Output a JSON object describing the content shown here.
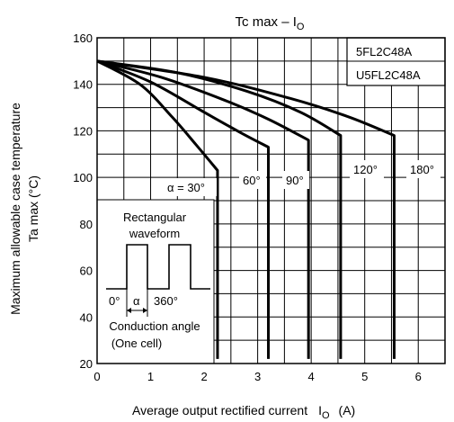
{
  "chart_data": {
    "type": "line",
    "title": "Tc max – I",
    "title_subscript": "O",
    "xlabel": "Average output rectified current",
    "xlabel_symbol": "I",
    "xlabel_symbol_subscript": "O",
    "xlabel_unit": "(A)",
    "ylabel_line1": "Maximum allowable case temperature",
    "ylabel_line2": "Ta max    (°C)",
    "xlim": [
      0,
      6.5
    ],
    "ylim": [
      20,
      160
    ],
    "x_ticks": [
      0,
      1,
      2,
      3,
      4,
      5,
      6
    ],
    "y_ticks": [
      20,
      40,
      60,
      80,
      100,
      120,
      140,
      160
    ],
    "x_tick_labels": [
      "0",
      "1",
      "2",
      "3",
      "4",
      "5",
      "6"
    ],
    "y_tick_labels": [
      "20",
      "40",
      "60",
      "80",
      "100",
      "120",
      "140",
      "160"
    ],
    "grid": true,
    "legend_box": [
      "5FL2C48A",
      "U5FL2C48A"
    ],
    "series": [
      {
        "name": "α = 30°",
        "points": [
          [
            0,
            150
          ],
          [
            0.8,
            140
          ],
          [
            1.4,
            126
          ],
          [
            1.85,
            114
          ],
          [
            2.25,
            103
          ],
          [
            2.25,
            22
          ]
        ]
      },
      {
        "name": "60°",
        "points": [
          [
            0,
            150
          ],
          [
            1.0,
            141
          ],
          [
            2.0,
            128
          ],
          [
            2.7,
            119
          ],
          [
            3.2,
            113
          ],
          [
            3.2,
            22
          ]
        ]
      },
      {
        "name": "90°",
        "points": [
          [
            0,
            150
          ],
          [
            1.2,
            143
          ],
          [
            2.4,
            133
          ],
          [
            3.2,
            125
          ],
          [
            3.95,
            116
          ],
          [
            3.95,
            22
          ]
        ]
      },
      {
        "name": "120°",
        "points": [
          [
            0,
            150
          ],
          [
            1.5,
            145
          ],
          [
            2.8,
            137
          ],
          [
            3.8,
            128
          ],
          [
            4.55,
            118
          ],
          [
            4.55,
            22
          ]
        ]
      },
      {
        "name": "180°",
        "points": [
          [
            0,
            150
          ],
          [
            2.0,
            143
          ],
          [
            3.6,
            134
          ],
          [
            4.7,
            126
          ],
          [
            5.55,
            118
          ],
          [
            5.55,
            22
          ]
        ]
      }
    ],
    "inset": {
      "title_line1": "Rectangular",
      "title_line2": "waveform",
      "label_zero": "0°",
      "label_alpha": "α",
      "label_360": "360°",
      "caption_line1": "Conduction angle",
      "caption_line2": "(One cell)"
    }
  }
}
